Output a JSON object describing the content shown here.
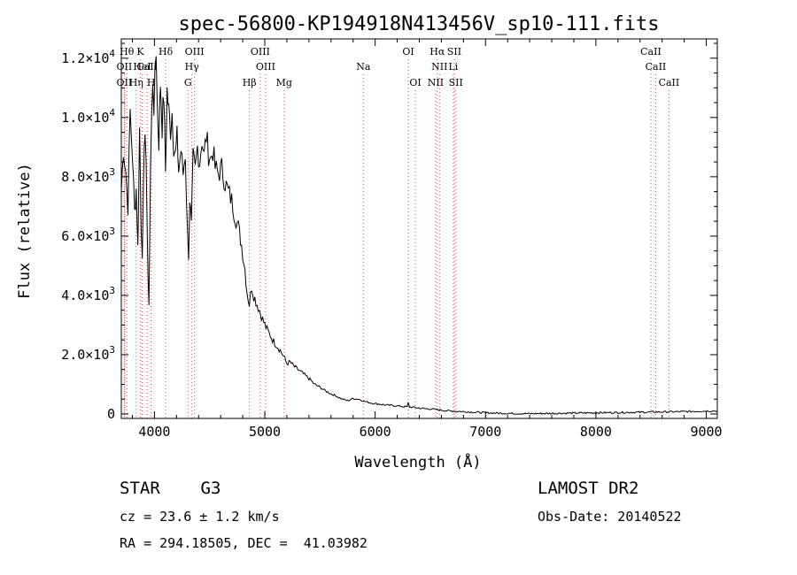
{
  "chart_data": {
    "type": "line",
    "title": "spec-56800-KP194918N413456V_sp10-111.fits",
    "xlabel": "Wavelength (Å)",
    "ylabel": "Flux (relative)",
    "xlim": [
      3700,
      9100
    ],
    "ylim": [
      -150,
      12650
    ],
    "grid": false,
    "x_ticks": [
      {
        "value": 4000,
        "label": "4000"
      },
      {
        "value": 5000,
        "label": "5000"
      },
      {
        "value": 6000,
        "label": "6000"
      },
      {
        "value": 7000,
        "label": "7000"
      },
      {
        "value": 8000,
        "label": "8000"
      },
      {
        "value": 9000,
        "label": "9000"
      }
    ],
    "y_ticks": [
      {
        "value": 0,
        "mant": "0",
        "exp": ""
      },
      {
        "value": 2000,
        "mant": "2.0×10",
        "exp": "3"
      },
      {
        "value": 4000,
        "mant": "4.0×10",
        "exp": "3"
      },
      {
        "value": 6000,
        "mant": "6.0×10",
        "exp": "3"
      },
      {
        "value": 8000,
        "mant": "8.0×10",
        "exp": "3"
      },
      {
        "value": 10000,
        "mant": "1.0×10",
        "exp": "4"
      },
      {
        "value": 12000,
        "mant": "1.2×10",
        "exp": "4"
      }
    ],
    "series": [
      {
        "points": [
          [
            3700,
            7500
          ],
          [
            3720,
            9000
          ],
          [
            3740,
            8200
          ],
          [
            3760,
            7000
          ],
          [
            3780,
            10200
          ],
          [
            3800,
            8800
          ],
          [
            3820,
            6800
          ],
          [
            3835,
            7600
          ],
          [
            3850,
            5600
          ],
          [
            3865,
            9600
          ],
          [
            3880,
            6400
          ],
          [
            3890,
            5500
          ],
          [
            3900,
            7400
          ],
          [
            3915,
            9800
          ],
          [
            3925,
            8600
          ],
          [
            3935,
            5800
          ],
          [
            3950,
            3700
          ],
          [
            3965,
            8200
          ],
          [
            3975,
            10400
          ],
          [
            3985,
            11500
          ],
          [
            3995,
            9600
          ],
          [
            4005,
            11800
          ],
          [
            4015,
            12400
          ],
          [
            4025,
            10500
          ],
          [
            4040,
            9200
          ],
          [
            4055,
            11200
          ],
          [
            4070,
            9700
          ],
          [
            4085,
            10800
          ],
          [
            4100,
            8200
          ],
          [
            4115,
            10900
          ],
          [
            4130,
            10200
          ],
          [
            4145,
            9600
          ],
          [
            4160,
            10200
          ],
          [
            4175,
            9100
          ],
          [
            4190,
            8700
          ],
          [
            4205,
            9300
          ],
          [
            4220,
            8200
          ],
          [
            4240,
            8900
          ],
          [
            4260,
            8100
          ],
          [
            4280,
            8800
          ],
          [
            4300,
            6000
          ],
          [
            4310,
            5400
          ],
          [
            4320,
            7300
          ],
          [
            4335,
            6300
          ],
          [
            4350,
            8600
          ],
          [
            4370,
            8200
          ],
          [
            4390,
            9000
          ],
          [
            4410,
            8500
          ],
          [
            4430,
            9300
          ],
          [
            4450,
            8700
          ],
          [
            4470,
            9400
          ],
          [
            4490,
            8800
          ],
          [
            4510,
            8600
          ],
          [
            4530,
            8900
          ],
          [
            4550,
            8300
          ],
          [
            4580,
            8100
          ],
          [
            4610,
            8300
          ],
          [
            4640,
            7800
          ],
          [
            4670,
            7500
          ],
          [
            4700,
            7200
          ],
          [
            4730,
            6700
          ],
          [
            4760,
            6300
          ],
          [
            4790,
            5700
          ],
          [
            4820,
            4900
          ],
          [
            4840,
            4100
          ],
          [
            4860,
            3700
          ],
          [
            4880,
            4300
          ],
          [
            4900,
            4000
          ],
          [
            4930,
            3700
          ],
          [
            4960,
            3400
          ],
          [
            4990,
            3100
          ],
          [
            5020,
            2850
          ],
          [
            5050,
            2650
          ],
          [
            5080,
            2450
          ],
          [
            5110,
            2300
          ],
          [
            5140,
            2150
          ],
          [
            5170,
            1950
          ],
          [
            5200,
            1700
          ],
          [
            5230,
            1750
          ],
          [
            5260,
            1620
          ],
          [
            5300,
            1500
          ],
          [
            5350,
            1350
          ],
          [
            5400,
            1200
          ],
          [
            5450,
            1000
          ],
          [
            5500,
            900
          ],
          [
            5550,
            780
          ],
          [
            5600,
            680
          ],
          [
            5650,
            600
          ],
          [
            5700,
            500
          ],
          [
            5750,
            450
          ],
          [
            5800,
            520
          ],
          [
            5850,
            500
          ],
          [
            5900,
            430
          ],
          [
            5950,
            380
          ],
          [
            6000,
            350
          ],
          [
            6050,
            330
          ],
          [
            6100,
            300
          ],
          [
            6150,
            290
          ],
          [
            6200,
            270
          ],
          [
            6250,
            250
          ],
          [
            6290,
            240
          ],
          [
            6300,
            380
          ],
          [
            6310,
            240
          ],
          [
            6350,
            220
          ],
          [
            6400,
            200
          ],
          [
            6450,
            180
          ],
          [
            6500,
            170
          ],
          [
            6550,
            150
          ],
          [
            6600,
            130
          ],
          [
            6650,
            110
          ],
          [
            6700,
            100
          ],
          [
            6750,
            90
          ],
          [
            6800,
            80
          ],
          [
            6850,
            70
          ],
          [
            6900,
            60
          ],
          [
            6950,
            50
          ],
          [
            7000,
            40
          ],
          [
            7100,
            30
          ],
          [
            7200,
            20
          ],
          [
            7300,
            15
          ],
          [
            7400,
            10
          ],
          [
            7500,
            15
          ],
          [
            7600,
            20
          ],
          [
            7700,
            25
          ],
          [
            7800,
            30
          ],
          [
            7900,
            35
          ],
          [
            8000,
            40
          ],
          [
            8100,
            45
          ],
          [
            8200,
            50
          ],
          [
            8300,
            55
          ],
          [
            8400,
            60
          ],
          [
            8500,
            65
          ],
          [
            8600,
            70
          ],
          [
            8700,
            75
          ],
          [
            8800,
            80
          ],
          [
            8900,
            90
          ],
          [
            9000,
            100
          ],
          [
            9100,
            105
          ]
        ]
      }
    ],
    "line_markers": [
      {
        "x": 3750,
        "label": "Hθ",
        "row": 0
      },
      {
        "x": 3872,
        "label": "K",
        "row": 0
      },
      {
        "x": 4102,
        "label": "Hδ",
        "row": 0
      },
      {
        "x": 4363,
        "label": "OIII",
        "row": 0
      },
      {
        "x": 4959,
        "label": "OIII",
        "row": 0
      },
      {
        "x": 6300,
        "label": "OI",
        "row": 0
      },
      {
        "x": 6563,
        "label": "Hα",
        "row": 0
      },
      {
        "x": 6717,
        "label": "SII",
        "row": 0
      },
      {
        "x": 8498,
        "label": "CaII",
        "row": 0
      },
      {
        "x": 3727,
        "label": "OII",
        "row": 1
      },
      {
        "x": 3889,
        "label": "HeI",
        "row": 1
      },
      {
        "x": 3934,
        "label": "CaII",
        "row": 1
      },
      {
        "x": 4340,
        "label": "Hγ",
        "row": 1
      },
      {
        "x": 5007,
        "label": "OIII",
        "row": 1
      },
      {
        "x": 5893,
        "label": "Na",
        "row": 1
      },
      {
        "x": 6583,
        "label": "NII",
        "row": 1
      },
      {
        "x": 6708,
        "label": "Li",
        "row": 1
      },
      {
        "x": 8542,
        "label": "CaII",
        "row": 1
      },
      {
        "x": 3727,
        "label": "OII",
        "row": 2
      },
      {
        "x": 3835,
        "label": "Hη",
        "row": 2
      },
      {
        "x": 3970,
        "label": "H",
        "row": 2
      },
      {
        "x": 4304,
        "label": "G",
        "row": 2
      },
      {
        "x": 4861,
        "label": "Hβ",
        "row": 2
      },
      {
        "x": 5175,
        "label": "Mg",
        "row": 2
      },
      {
        "x": 6364,
        "label": "OI",
        "row": 2
      },
      {
        "x": 6548,
        "label": "NII",
        "row": 2
      },
      {
        "x": 6731,
        "label": "SII",
        "row": 2
      },
      {
        "x": 8662,
        "label": "CaII",
        "row": 2
      }
    ]
  },
  "info": {
    "object": "STAR    G3",
    "survey": "LAMOST DR2",
    "cz": "cz = 23.6 ± 1.2 km/s",
    "obs_date": "Obs-Date: 20140522",
    "coords": "RA = 294.18505, DEC =  41.03982"
  }
}
